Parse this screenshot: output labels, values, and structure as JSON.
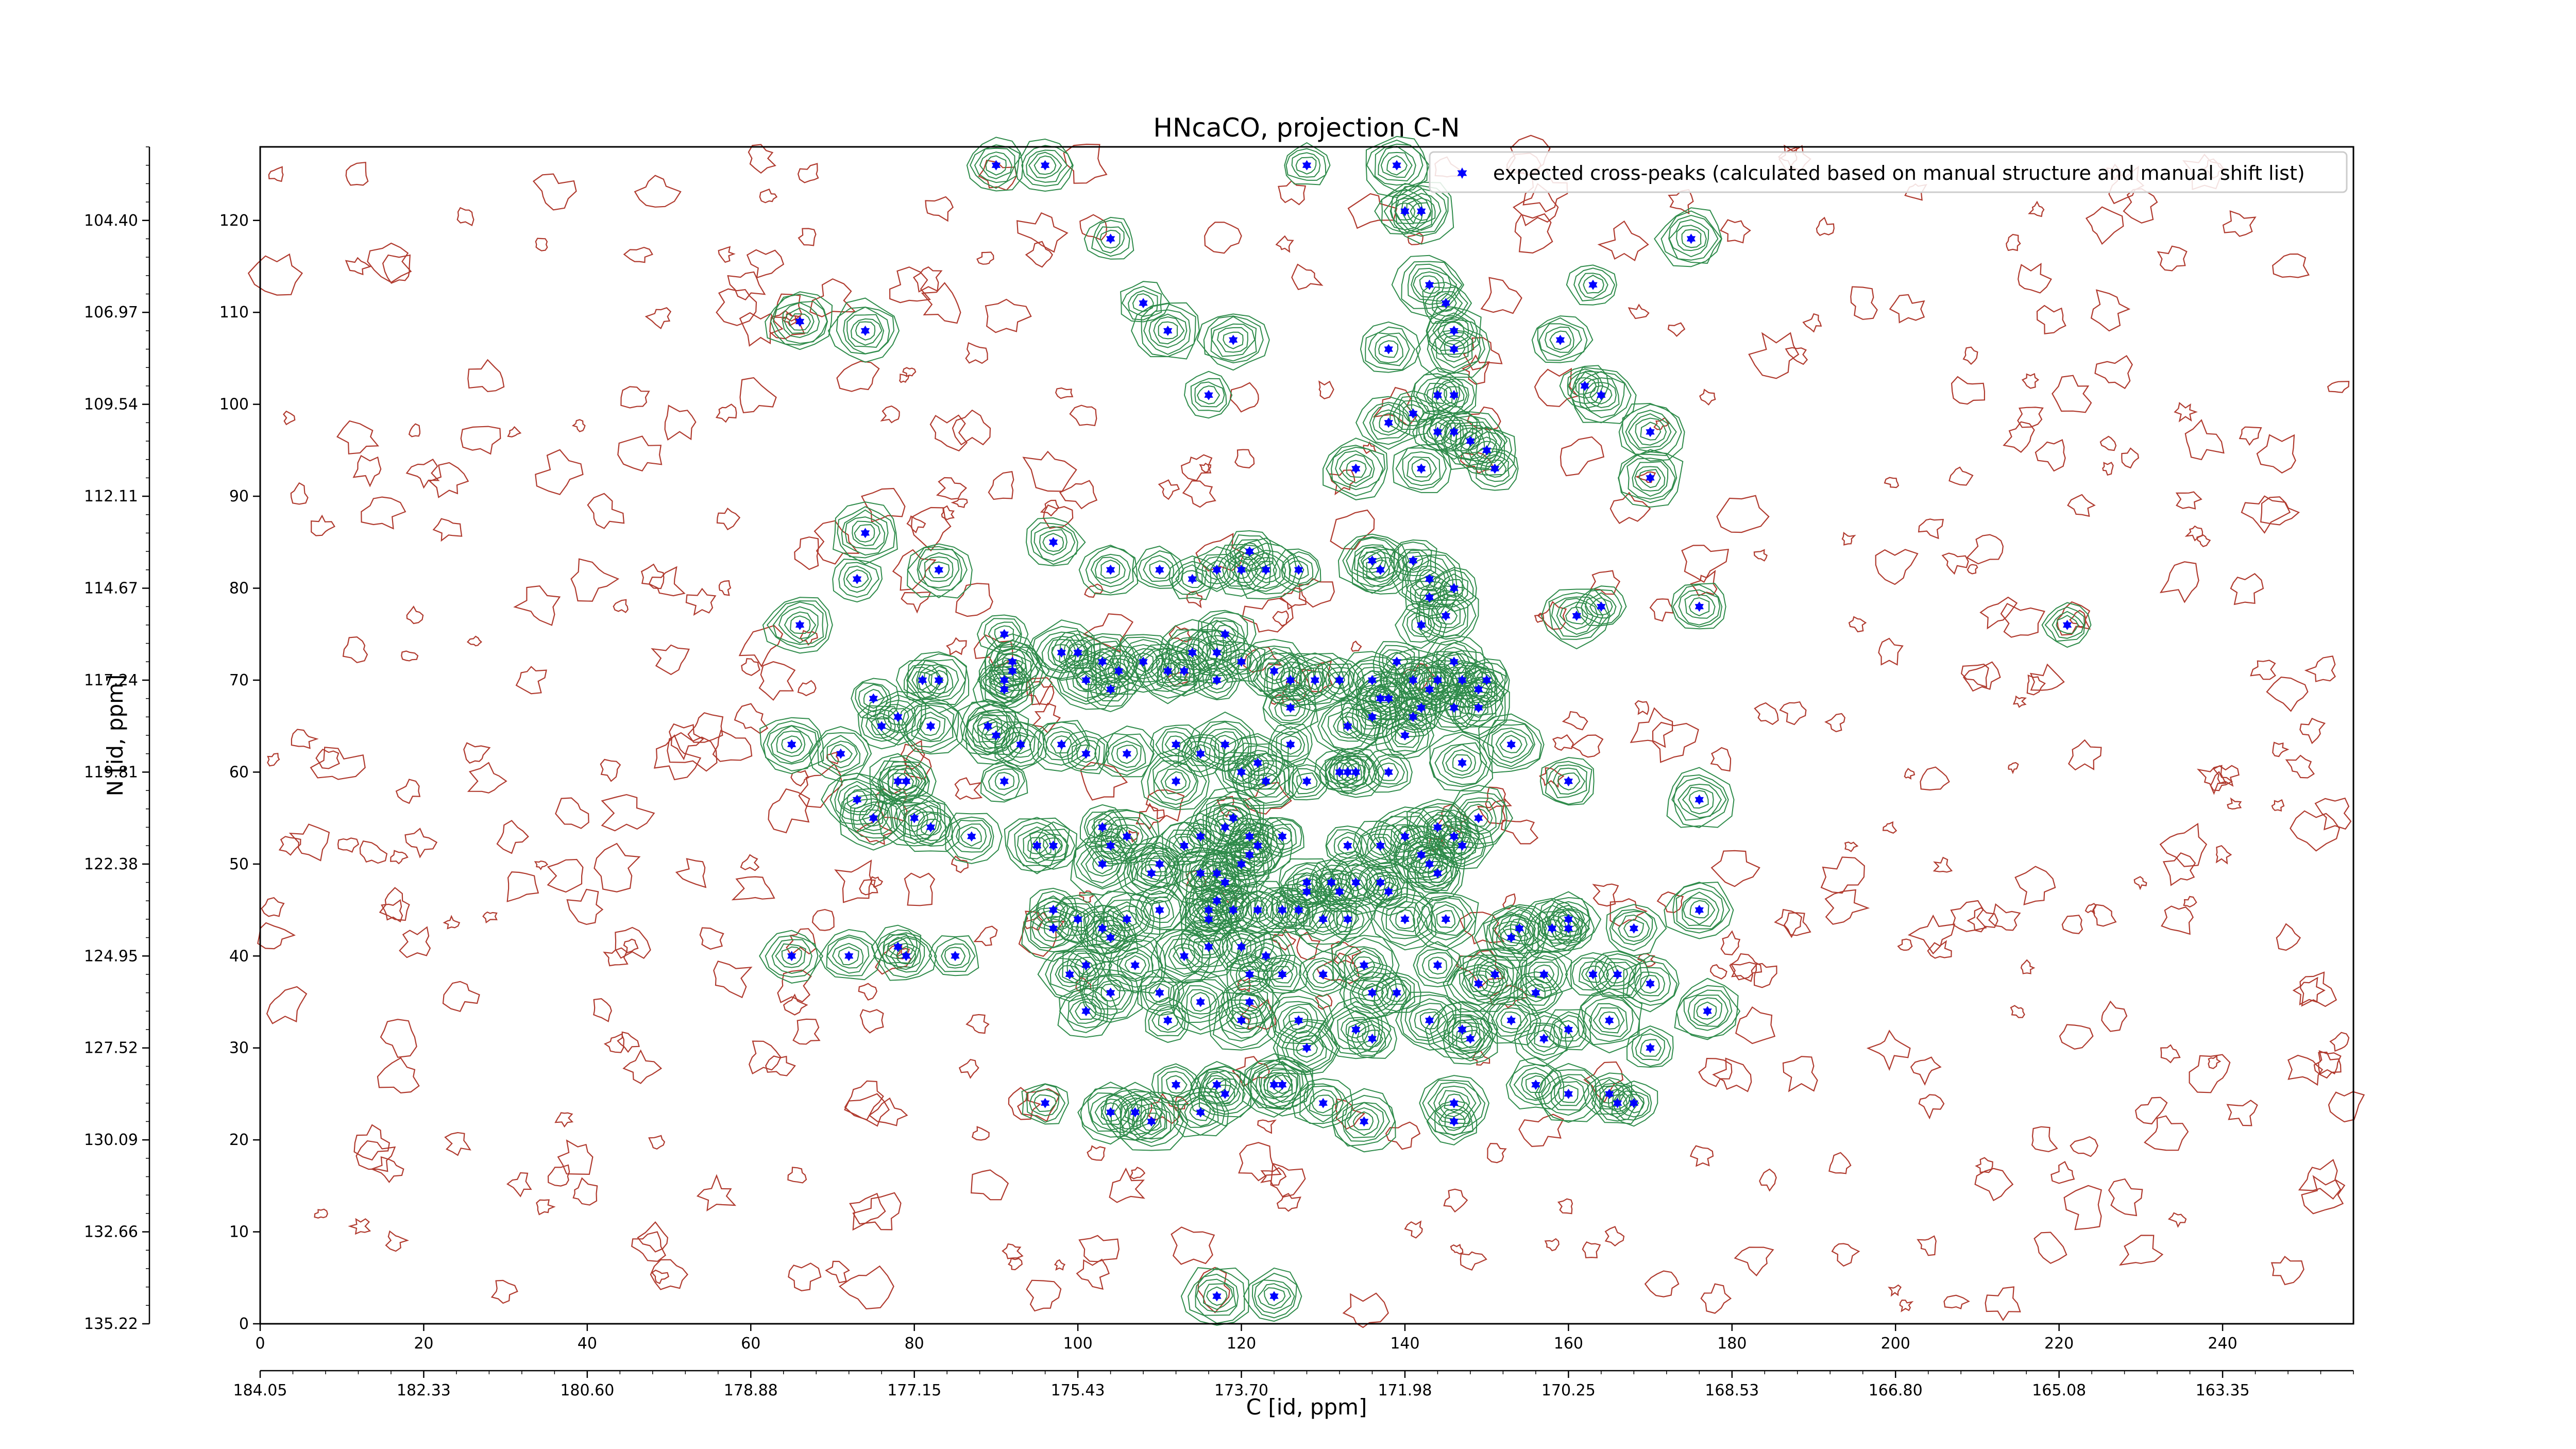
{
  "chart_data": {
    "type": "scatter",
    "title": "HNcaCO, projection C-N",
    "xlabel": "C [id, ppm]",
    "ylabel": "N [id, ppm]",
    "x_index_range": [
      0,
      256
    ],
    "y_index_range": [
      0,
      128
    ],
    "x_index_ticks": [
      "0",
      "20",
      "40",
      "60",
      "80",
      "100",
      "120",
      "140",
      "160",
      "180",
      "200",
      "220",
      "240"
    ],
    "y_index_ticks": [
      "0",
      "10",
      "20",
      "30",
      "40",
      "50",
      "60",
      "70",
      "80",
      "90",
      "100",
      "110",
      "120"
    ],
    "x_ppm_ticks": [
      "184.05",
      "182.33",
      "180.60",
      "178.88",
      "177.15",
      "175.43",
      "173.70",
      "171.98",
      "170.25",
      "168.53",
      "166.80",
      "165.08",
      "163.35"
    ],
    "y_ppm_ticks": [
      "135.22",
      "132.66",
      "130.09",
      "127.52",
      "124.95",
      "122.38",
      "119.81",
      "117.24",
      "114.67",
      "112.11",
      "109.54",
      "106.97",
      "104.40"
    ],
    "legend": {
      "label": "expected cross-peaks (calculated based on manual structure and manual shift list)",
      "position": "upper right"
    },
    "series": [
      {
        "name": "expected cross-peaks (calculated based on manual structure and manual shift list)",
        "color": "#0000ff",
        "marker": "star",
        "points": [
          [
            128,
            126
          ],
          [
            139,
            126
          ],
          [
            96,
            126
          ],
          [
            90,
            126
          ],
          [
            140,
            121
          ],
          [
            142,
            121
          ],
          [
            104,
            118
          ],
          [
            175,
            118
          ],
          [
            163,
            113
          ],
          [
            143,
            113
          ],
          [
            145,
            111
          ],
          [
            108,
            111
          ],
          [
            66,
            109
          ],
          [
            74,
            108
          ],
          [
            111,
            108
          ],
          [
            119,
            107
          ],
          [
            159,
            107
          ],
          [
            138,
            106
          ],
          [
            116,
            101
          ],
          [
            162,
            102
          ],
          [
            164,
            101
          ],
          [
            146,
            101
          ],
          [
            144,
            101
          ],
          [
            141,
            99
          ],
          [
            138,
            98
          ],
          [
            170,
            97
          ],
          [
            170,
            92
          ],
          [
            151,
            93
          ],
          [
            144,
            97
          ],
          [
            146,
            97
          ],
          [
            148,
            96
          ],
          [
            150,
            95
          ],
          [
            142,
            93
          ],
          [
            134,
            93
          ],
          [
            121,
            84
          ],
          [
            97,
            85
          ],
          [
            74,
            86
          ],
          [
            73,
            81
          ],
          [
            83,
            82
          ],
          [
            104,
            82
          ],
          [
            110,
            82
          ],
          [
            114,
            81
          ],
          [
            117,
            82
          ],
          [
            120,
            82
          ],
          [
            123,
            82
          ],
          [
            127,
            82
          ],
          [
            136,
            83
          ],
          [
            137,
            82
          ],
          [
            141,
            83
          ],
          [
            143,
            81
          ],
          [
            143,
            79
          ],
          [
            146,
            80
          ],
          [
            164,
            78
          ],
          [
            161,
            77
          ],
          [
            176,
            78
          ],
          [
            145,
            77
          ],
          [
            142,
            76
          ],
          [
            66,
            76
          ],
          [
            91,
            75
          ],
          [
            92,
            71
          ],
          [
            92,
            72
          ],
          [
            91,
            69
          ],
          [
            91,
            70
          ],
          [
            98,
            73
          ],
          [
            100,
            73
          ],
          [
            103,
            72
          ],
          [
            101,
            70
          ],
          [
            104,
            69
          ],
          [
            105,
            71
          ],
          [
            108,
            72
          ],
          [
            111,
            71
          ],
          [
            113,
            71
          ],
          [
            114,
            73
          ],
          [
            118,
            75
          ],
          [
            117,
            73
          ],
          [
            117,
            70
          ],
          [
            120,
            72
          ],
          [
            124,
            71
          ],
          [
            126,
            70
          ],
          [
            129,
            70
          ],
          [
            132,
            70
          ],
          [
            126,
            67
          ],
          [
            139,
            72
          ],
          [
            136,
            70
          ],
          [
            137,
            68
          ],
          [
            138,
            68
          ],
          [
            141,
            70
          ],
          [
            143,
            69
          ],
          [
            144,
            70
          ],
          [
            146,
            72
          ],
          [
            147,
            70
          ],
          [
            149,
            69
          ],
          [
            150,
            70
          ],
          [
            149,
            67
          ],
          [
            146,
            67
          ],
          [
            142,
            67
          ],
          [
            141,
            66
          ],
          [
            140,
            64
          ],
          [
            136,
            66
          ],
          [
            133,
            65
          ],
          [
            81,
            70
          ],
          [
            83,
            70
          ],
          [
            75,
            68
          ],
          [
            78,
            66
          ],
          [
            76,
            65
          ],
          [
            65,
            63
          ],
          [
            71,
            62
          ],
          [
            82,
            65
          ],
          [
            89,
            65
          ],
          [
            90,
            64
          ],
          [
            93,
            63
          ],
          [
            98,
            63
          ],
          [
            101,
            62
          ],
          [
            106,
            62
          ],
          [
            112,
            63
          ],
          [
            115,
            62
          ],
          [
            118,
            63
          ],
          [
            122,
            61
          ],
          [
            126,
            63
          ],
          [
            133,
            60
          ],
          [
            134,
            60
          ],
          [
            138,
            60
          ],
          [
            153,
            63
          ],
          [
            147,
            61
          ],
          [
            112,
            59
          ],
          [
            120,
            60
          ],
          [
            123,
            59
          ],
          [
            128,
            59
          ],
          [
            132,
            60
          ],
          [
            78,
            59
          ],
          [
            79,
            59
          ],
          [
            91,
            59
          ],
          [
            160,
            59
          ],
          [
            176,
            57
          ],
          [
            73,
            57
          ],
          [
            75,
            55
          ],
          [
            80,
            55
          ],
          [
            82,
            54
          ],
          [
            87,
            53
          ],
          [
            95,
            52
          ],
          [
            97,
            52
          ],
          [
            103,
            54
          ],
          [
            104,
            52
          ],
          [
            106,
            53
          ],
          [
            113,
            52
          ],
          [
            115,
            53
          ],
          [
            118,
            54
          ],
          [
            119,
            55
          ],
          [
            121,
            53
          ],
          [
            125,
            53
          ],
          [
            133,
            52
          ],
          [
            137,
            52
          ],
          [
            140,
            53
          ],
          [
            144,
            54
          ],
          [
            146,
            53
          ],
          [
            149,
            55
          ],
          [
            147,
            52
          ],
          [
            142,
            51
          ],
          [
            143,
            50
          ],
          [
            144,
            49
          ],
          [
            110,
            50
          ],
          [
            103,
            50
          ],
          [
            109,
            49
          ],
          [
            115,
            49
          ],
          [
            117,
            49
          ],
          [
            118,
            48
          ],
          [
            128,
            48
          ],
          [
            131,
            48
          ],
          [
            134,
            48
          ],
          [
            137,
            48
          ],
          [
            138,
            47
          ],
          [
            128,
            47
          ],
          [
            132,
            47
          ],
          [
            116,
            45
          ],
          [
            117,
            46
          ],
          [
            119,
            45
          ],
          [
            110,
            45
          ],
          [
            116,
            44
          ],
          [
            97,
            45
          ],
          [
            100,
            44
          ],
          [
            103,
            43
          ],
          [
            106,
            44
          ],
          [
            122,
            45
          ],
          [
            125,
            45
          ],
          [
            127,
            45
          ],
          [
            130,
            44
          ],
          [
            133,
            44
          ],
          [
            140,
            44
          ],
          [
            145,
            44
          ],
          [
            160,
            44
          ],
          [
            160,
            43
          ],
          [
            176,
            45
          ],
          [
            154,
            43
          ],
          [
            153,
            42
          ],
          [
            158,
            43
          ],
          [
            168,
            43
          ],
          [
            97,
            43
          ],
          [
            104,
            42
          ],
          [
            116,
            41
          ],
          [
            120,
            41
          ],
          [
            123,
            40
          ],
          [
            113,
            40
          ],
          [
            101,
            39
          ],
          [
            107,
            39
          ],
          [
            121,
            38
          ],
          [
            125,
            38
          ],
          [
            130,
            38
          ],
          [
            135,
            39
          ],
          [
            144,
            39
          ],
          [
            157,
            38
          ],
          [
            163,
            38
          ],
          [
            166,
            38
          ],
          [
            156,
            36
          ],
          [
            170,
            37
          ],
          [
            85,
            40
          ],
          [
            79,
            40
          ],
          [
            65,
            40
          ],
          [
            72,
            40
          ],
          [
            78,
            41
          ],
          [
            99,
            38
          ],
          [
            104,
            36
          ],
          [
            110,
            36
          ],
          [
            115,
            35
          ],
          [
            121,
            35
          ],
          [
            136,
            36
          ],
          [
            139,
            36
          ],
          [
            149,
            37
          ],
          [
            151,
            38
          ],
          [
            101,
            34
          ],
          [
            111,
            33
          ],
          [
            120,
            33
          ],
          [
            127,
            33
          ],
          [
            143,
            33
          ],
          [
            147,
            32
          ],
          [
            148,
            31
          ],
          [
            136,
            31
          ],
          [
            134,
            32
          ],
          [
            153,
            33
          ],
          [
            157,
            31
          ],
          [
            160,
            32
          ],
          [
            165,
            33
          ],
          [
            177,
            34
          ],
          [
            128,
            30
          ],
          [
            170,
            30
          ],
          [
            117,
            26
          ],
          [
            124,
            26
          ],
          [
            125,
            26
          ],
          [
            112,
            26
          ],
          [
            109,
            22
          ],
          [
            118,
            25
          ],
          [
            115,
            23
          ],
          [
            104,
            23
          ],
          [
            107,
            23
          ],
          [
            96,
            24
          ],
          [
            130,
            24
          ],
          [
            146,
            24
          ],
          [
            156,
            26
          ],
          [
            160,
            25
          ],
          [
            165,
            25
          ],
          [
            168,
            24
          ],
          [
            166,
            24
          ],
          [
            146,
            22
          ],
          [
            135,
            22
          ],
          [
            117,
            3
          ],
          [
            124,
            3
          ],
          [
            221,
            76
          ],
          [
            146,
            108
          ],
          [
            146,
            106
          ],
          [
            120,
            50
          ],
          [
            121,
            51
          ],
          [
            122,
            52
          ]
        ]
      }
    ],
    "contours": {
      "positive_color": "#2e8b4a",
      "negative_color": "#b03a2e"
    },
    "grid": false
  }
}
